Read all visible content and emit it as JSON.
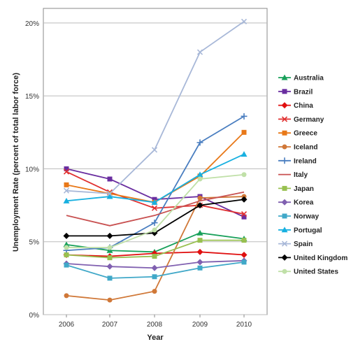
{
  "chart_data": {
    "type": "line",
    "title": "",
    "xlabel": "Year",
    "ylabel": "Unemployment Rate (percent of total labor force)",
    "x": [
      "2006",
      "2007",
      "2008",
      "2009",
      "2010"
    ],
    "ylim": [
      0,
      21
    ],
    "yticks": [
      0,
      5,
      10,
      15,
      20
    ],
    "ytick_labels": [
      "0%",
      "5%",
      "10%",
      "15%",
      "20%"
    ],
    "grid": "horizontal",
    "legend_position": "right",
    "series": [
      {
        "name": "Australia",
        "color": "#18a05a",
        "marker": "triangle",
        "values": [
          4.8,
          4.4,
          4.3,
          5.6,
          5.2
        ]
      },
      {
        "name": "Brazil",
        "color": "#6a2ea0",
        "marker": "square",
        "values": [
          10.0,
          9.3,
          7.9,
          8.1,
          6.7
        ]
      },
      {
        "name": "China",
        "color": "#e01010",
        "marker": "diamond",
        "values": [
          4.1,
          4.0,
          4.2,
          4.3,
          4.1
        ]
      },
      {
        "name": "Germany",
        "color": "#e03030",
        "marker": "x",
        "values": [
          9.8,
          8.4,
          7.3,
          7.5,
          6.9
        ]
      },
      {
        "name": "Greece",
        "color": "#e87818",
        "marker": "square",
        "values": [
          8.9,
          8.3,
          7.7,
          9.5,
          12.5
        ]
      },
      {
        "name": "Iceland",
        "color": "#d07838",
        "marker": "circle",
        "values": [
          1.3,
          1.0,
          1.6,
          8.0,
          8.1
        ]
      },
      {
        "name": "Ireland",
        "color": "#4a7ec0",
        "marker": "plus",
        "values": [
          4.4,
          4.6,
          6.3,
          11.8,
          13.6
        ]
      },
      {
        "name": "Italy",
        "color": "#c85050",
        "marker": "none",
        "values": [
          6.8,
          6.1,
          6.8,
          7.8,
          8.4
        ]
      },
      {
        "name": "Japan",
        "color": "#98c050",
        "marker": "square",
        "values": [
          4.1,
          3.9,
          4.0,
          5.1,
          5.1
        ]
      },
      {
        "name": "Korea",
        "color": "#8060b0",
        "marker": "diamond",
        "values": [
          3.5,
          3.3,
          3.2,
          3.6,
          3.7
        ]
      },
      {
        "name": "Norway",
        "color": "#40a8c8",
        "marker": "square",
        "values": [
          3.4,
          2.5,
          2.6,
          3.2,
          3.6
        ]
      },
      {
        "name": "Portugal",
        "color": "#18b0e0",
        "marker": "triangle",
        "values": [
          7.8,
          8.1,
          7.7,
          9.6,
          11.0
        ]
      },
      {
        "name": "Spain",
        "color": "#a8b8d8",
        "marker": "x",
        "values": [
          8.5,
          8.3,
          11.3,
          18.0,
          20.1
        ]
      },
      {
        "name": "United Kingdom",
        "color": "#000000",
        "marker": "diamond",
        "values": [
          5.4,
          5.4,
          5.6,
          7.5,
          7.9
        ]
      },
      {
        "name": "United States",
        "color": "#c0e0a8",
        "marker": "circle",
        "values": [
          4.6,
          4.6,
          5.8,
          9.3,
          9.6
        ]
      }
    ]
  }
}
